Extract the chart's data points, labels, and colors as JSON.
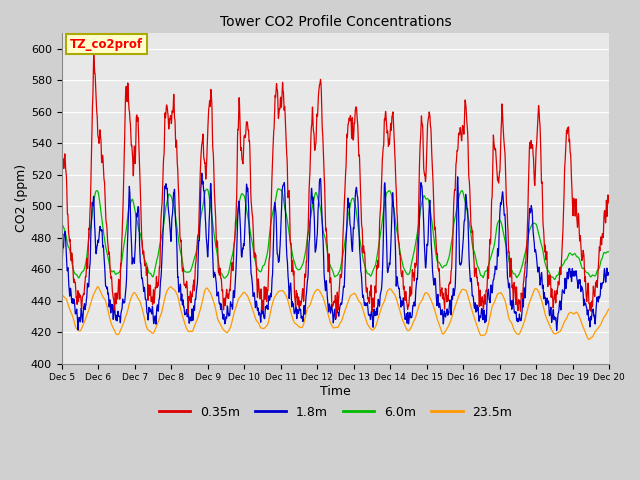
{
  "title": "Tower CO2 Profile Concentrations",
  "xlabel": "Time",
  "ylabel": "CO2 (ppm)",
  "ylim": [
    400,
    610
  ],
  "yticks": [
    400,
    420,
    440,
    460,
    480,
    500,
    520,
    540,
    560,
    580,
    600
  ],
  "annotation_text": "TZ_co2prof",
  "annotation_bg": "#ffffcc",
  "annotation_border": "#aaaa00",
  "plot_bg": "#e8e8e8",
  "fig_bg": "#d0d0d0",
  "grid_color": "#ffffff",
  "colors": {
    "0.35m": "#dd0000",
    "1.8m": "#0000cc",
    "6.0m": "#00bb00",
    "23.5m": "#ff9900"
  },
  "legend_labels": [
    "0.35m",
    "1.8m",
    "6.0m",
    "23.5m"
  ],
  "n_points": 3600,
  "x_start": 5,
  "x_end": 20,
  "xtick_positions": [
    5,
    6,
    7,
    8,
    9,
    10,
    11,
    12,
    13,
    14,
    15,
    16,
    17,
    18,
    19,
    20
  ],
  "xtick_labels": [
    "Dec 5",
    "Dec 6",
    "Dec 7",
    "Dec 8",
    "Dec 9",
    "Dec 10",
    "Dec 11",
    "Dec 12",
    "Dec 13",
    "Dec 14",
    "Dec 15",
    "Dec 16",
    "Dec 17",
    "Dec 18",
    "Dec 19",
    "Dec 20"
  ],
  "seed": 42
}
